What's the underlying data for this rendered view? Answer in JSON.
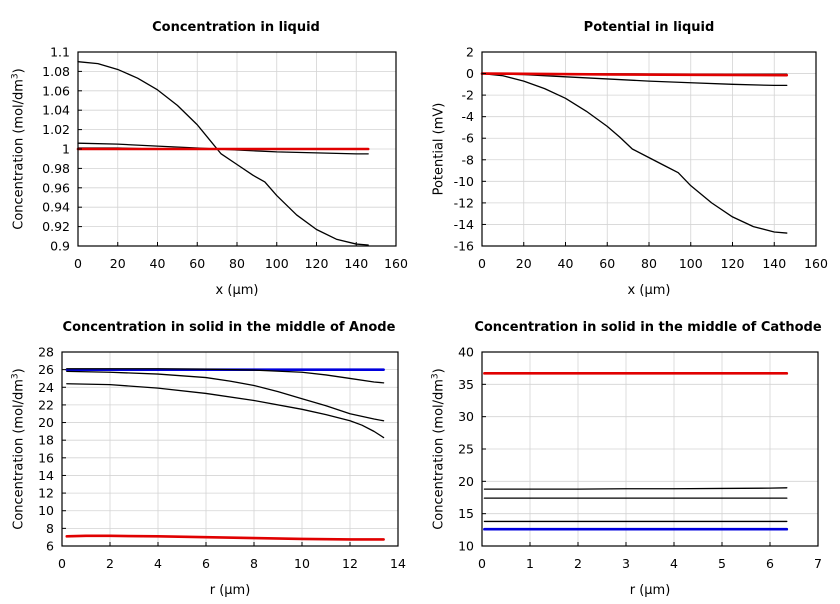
{
  "chart_data": [
    {
      "type": "line",
      "title": "Concentration in liquid",
      "xlabel": "x (μm)",
      "ylabel": "Concentration (mol/dm³)",
      "ylabel_main": "Concentration (mol/dm",
      "ylabel_sup": "3",
      "ylabel_tail": ")",
      "xlim": [
        0,
        160
      ],
      "ylim": [
        0.9,
        1.1
      ],
      "xticks": [
        0,
        20,
        40,
        60,
        80,
        100,
        120,
        140,
        160
      ],
      "yticks": [
        0.9,
        0.92,
        0.94,
        0.96,
        0.98,
        1,
        1.02,
        1.04,
        1.06,
        1.08,
        1.1
      ],
      "xtick_labels": [
        "0",
        "20",
        "40",
        "60",
        "80",
        "100",
        "120",
        "140",
        "160"
      ],
      "ytick_labels": [
        "0.9",
        "0.92",
        "0.94",
        "0.96",
        "0.98",
        "1",
        "1.02",
        "1.04",
        "1.06",
        "1.08",
        "1.1"
      ],
      "series": [
        {
          "name": "curve-1",
          "color": "#000000",
          "width": 1.3,
          "x": [
            0,
            10,
            20,
            30,
            40,
            50,
            60,
            66,
            72,
            80,
            88,
            94,
            100,
            110,
            120,
            130,
            140,
            146
          ],
          "y": [
            1.09,
            1.088,
            1.082,
            1.073,
            1.061,
            1.045,
            1.025,
            1.01,
            0.995,
            0.984,
            0.973,
            0.966,
            0.952,
            0.932,
            0.917,
            0.907,
            0.902,
            0.901
          ]
        },
        {
          "name": "curve-2",
          "color": "#000000",
          "width": 1.3,
          "x": [
            0,
            20,
            40,
            60,
            70,
            80,
            100,
            120,
            140,
            146
          ],
          "y": [
            1.006,
            1.005,
            1.003,
            1.001,
            1.0,
            0.999,
            0.997,
            0.996,
            0.995,
            0.995
          ]
        },
        {
          "name": "curve-3",
          "color": "#000000",
          "width": 1.3,
          "x": [
            0,
            20,
            40,
            60,
            80,
            100,
            120,
            146
          ],
          "y": [
            1.001,
            1.001,
            1.0,
            1.0,
            1.0,
            1.0,
            1.0,
            1.0
          ]
        },
        {
          "name": "curve-4-red",
          "color": "#e00000",
          "width": 2.6,
          "x": [
            0,
            146
          ],
          "y": [
            1.0,
            1.0
          ]
        }
      ]
    },
    {
      "type": "line",
      "title": "Potential in liquid",
      "xlabel": "x (μm)",
      "ylabel": "Potential (mV)",
      "xlim": [
        0,
        160
      ],
      "ylim": [
        -16,
        2
      ],
      "xticks": [
        0,
        20,
        40,
        60,
        80,
        100,
        120,
        140,
        160
      ],
      "yticks": [
        -16,
        -14,
        -12,
        -10,
        -8,
        -6,
        -4,
        -2,
        0,
        2
      ],
      "xtick_labels": [
        "0",
        "20",
        "40",
        "60",
        "80",
        "100",
        "120",
        "140",
        "160"
      ],
      "ytick_labels": [
        "-16",
        "-14",
        "-12",
        "-10",
        "-8",
        "-6",
        "-4",
        "-2",
        "0",
        "2"
      ],
      "series": [
        {
          "name": "curve-1",
          "color": "#000000",
          "width": 1.3,
          "x": [
            0,
            10,
            20,
            30,
            40,
            50,
            60,
            66,
            72,
            80,
            88,
            94,
            100,
            110,
            120,
            130,
            140,
            146
          ],
          "y": [
            0,
            -0.2,
            -0.7,
            -1.4,
            -2.3,
            -3.5,
            -4.9,
            -5.9,
            -7.0,
            -7.8,
            -8.6,
            -9.2,
            -10.4,
            -12.0,
            -13.3,
            -14.2,
            -14.7,
            -14.8
          ]
        },
        {
          "name": "curve-2",
          "color": "#000000",
          "width": 1.3,
          "x": [
            0,
            20,
            40,
            60,
            80,
            100,
            120,
            140,
            146
          ],
          "y": [
            0,
            -0.1,
            -0.3,
            -0.5,
            -0.7,
            -0.85,
            -1.0,
            -1.1,
            -1.1
          ]
        },
        {
          "name": "curve-3",
          "color": "#000000",
          "width": 1.3,
          "x": [
            0,
            40,
            80,
            120,
            146
          ],
          "y": [
            0,
            -0.02,
            -0.04,
            -0.05,
            -0.05
          ]
        },
        {
          "name": "curve-4-red",
          "color": "#e00000",
          "width": 2.6,
          "x": [
            0,
            20,
            60,
            100,
            146
          ],
          "y": [
            0,
            -0.02,
            -0.08,
            -0.12,
            -0.15
          ]
        }
      ]
    },
    {
      "type": "line",
      "title": "Concentration in solid in the middle of Anode",
      "xlabel": "r (μm)",
      "ylabel": "Concentration (mol/dm³)",
      "ylabel_main": "Concentration (mol/dm",
      "ylabel_sup": "3",
      "ylabel_tail": ")",
      "xlim": [
        0,
        14
      ],
      "ylim": [
        6,
        28
      ],
      "xticks": [
        0,
        2,
        4,
        6,
        8,
        10,
        12,
        14
      ],
      "yticks": [
        6,
        8,
        10,
        12,
        14,
        16,
        18,
        20,
        22,
        24,
        26,
        28
      ],
      "xtick_labels": [
        "0",
        "2",
        "4",
        "6",
        "8",
        "10",
        "12",
        "14"
      ],
      "ytick_labels": [
        "6",
        "8",
        "10",
        "12",
        "14",
        "16",
        "18",
        "20",
        "22",
        "24",
        "26",
        "28"
      ],
      "series": [
        {
          "name": "curve-blue",
          "color": "#0000dd",
          "width": 2.6,
          "x": [
            0.2,
            13.4
          ],
          "y": [
            26.0,
            26.0
          ]
        },
        {
          "name": "curve-1",
          "color": "#000000",
          "width": 1.3,
          "x": [
            0.2,
            2,
            4,
            6,
            8,
            10,
            11,
            12,
            13,
            13.4
          ],
          "y": [
            26.1,
            26.1,
            26.1,
            26.05,
            25.95,
            25.7,
            25.4,
            25.0,
            24.6,
            24.5
          ]
        },
        {
          "name": "curve-2",
          "color": "#000000",
          "width": 1.3,
          "x": [
            0.2,
            2,
            4,
            6,
            7,
            8,
            9,
            10,
            11,
            12,
            13,
            13.4
          ],
          "y": [
            25.8,
            25.7,
            25.5,
            25.1,
            24.7,
            24.2,
            23.5,
            22.7,
            21.9,
            21.0,
            20.4,
            20.2
          ]
        },
        {
          "name": "curve-3",
          "color": "#000000",
          "width": 1.3,
          "x": [
            0.2,
            2,
            4,
            6,
            8,
            10,
            11,
            12,
            12.5,
            13,
            13.4
          ],
          "y": [
            24.4,
            24.3,
            23.9,
            23.3,
            22.5,
            21.5,
            20.9,
            20.2,
            19.7,
            19.0,
            18.3
          ]
        },
        {
          "name": "curve-red",
          "color": "#e00000",
          "width": 2.6,
          "x": [
            0.2,
            1,
            2,
            4,
            6,
            8,
            10,
            12,
            13.4
          ],
          "y": [
            7.1,
            7.15,
            7.15,
            7.1,
            7.0,
            6.9,
            6.8,
            6.75,
            6.75
          ]
        }
      ]
    },
    {
      "type": "line",
      "title": "Concentration in solid in the middle of Cathode",
      "xlabel": "r (μm)",
      "ylabel": "Concentration (mol/dm³)",
      "ylabel_main": "Concentration (mol/dm",
      "ylabel_sup": "3",
      "ylabel_tail": ")",
      "xlim": [
        0,
        7
      ],
      "ylim": [
        10,
        40
      ],
      "xticks": [
        0,
        1,
        2,
        3,
        4,
        5,
        6,
        7
      ],
      "yticks": [
        10,
        15,
        20,
        25,
        30,
        35,
        40
      ],
      "xtick_labels": [
        "0",
        "1",
        "2",
        "3",
        "4",
        "5",
        "6",
        "7"
      ],
      "ytick_labels": [
        "10",
        "15",
        "20",
        "25",
        "30",
        "35",
        "40"
      ],
      "series": [
        {
          "name": "curve-red",
          "color": "#e00000",
          "width": 2.6,
          "x": [
            0.05,
            6.35
          ],
          "y": [
            36.7,
            36.7
          ]
        },
        {
          "name": "curve-1",
          "color": "#000000",
          "width": 1.3,
          "x": [
            0.05,
            1,
            2,
            3,
            4,
            5,
            6,
            6.35
          ],
          "y": [
            18.8,
            18.8,
            18.8,
            18.85,
            18.85,
            18.9,
            18.95,
            19.0
          ]
        },
        {
          "name": "curve-2",
          "color": "#000000",
          "width": 1.3,
          "x": [
            0.05,
            6.35
          ],
          "y": [
            17.4,
            17.4
          ]
        },
        {
          "name": "curve-3",
          "color": "#000000",
          "width": 1.3,
          "x": [
            0.05,
            6.35
          ],
          "y": [
            13.8,
            13.8
          ]
        },
        {
          "name": "curve-blue",
          "color": "#0000dd",
          "width": 2.6,
          "x": [
            0.05,
            6.35
          ],
          "y": [
            12.6,
            12.6
          ]
        }
      ]
    }
  ]
}
